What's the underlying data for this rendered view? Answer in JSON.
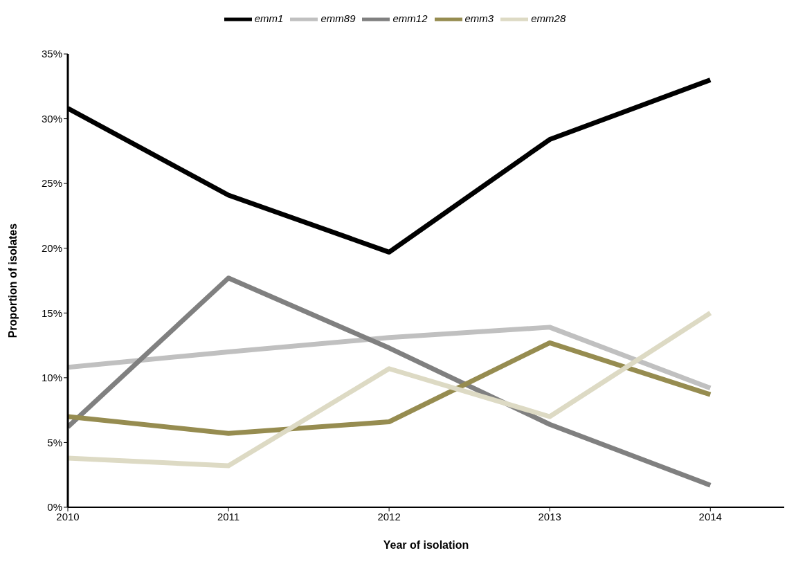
{
  "chart_data": {
    "type": "line",
    "xlabel": "Year of isolation",
    "ylabel": "Proportion of isolates",
    "x": [
      2010,
      2011,
      2012,
      2013,
      2014
    ],
    "xlim": [
      2010,
      2014.46
    ],
    "xticks": [
      2010,
      2011,
      2012,
      2013,
      2014
    ],
    "ylim": [
      0,
      35
    ],
    "yticks": [
      {
        "value": 0,
        "label": "0%"
      },
      {
        "value": 5,
        "label": "5%"
      },
      {
        "value": 10,
        "label": "10%"
      },
      {
        "value": 15,
        "label": "15%"
      },
      {
        "value": 20,
        "label": "20%"
      },
      {
        "value": 25,
        "label": "25%"
      },
      {
        "value": 30,
        "label": "30%"
      },
      {
        "value": 35,
        "label": "35%"
      }
    ],
    "grid": false,
    "legend": "top",
    "marker": "none",
    "line_style": "solid",
    "series": [
      {
        "name": "emm1",
        "color": "#000000",
        "values": [
          30.8,
          24.1,
          19.7,
          28.4,
          33.0
        ]
      },
      {
        "name": "emm89",
        "color": "#c0c0c0",
        "values": [
          10.8,
          12.0,
          13.1,
          13.9,
          9.2
        ]
      },
      {
        "name": "emm12",
        "color": "#808080",
        "values": [
          6.2,
          17.7,
          12.3,
          6.4,
          1.7
        ]
      },
      {
        "name": "emm3",
        "color": "#968c50",
        "values": [
          7.0,
          5.7,
          6.6,
          12.7,
          8.7
        ]
      },
      {
        "name": "emm28",
        "color": "#dddac4",
        "values": [
          3.8,
          3.2,
          10.7,
          7.0,
          15.0
        ]
      }
    ]
  }
}
